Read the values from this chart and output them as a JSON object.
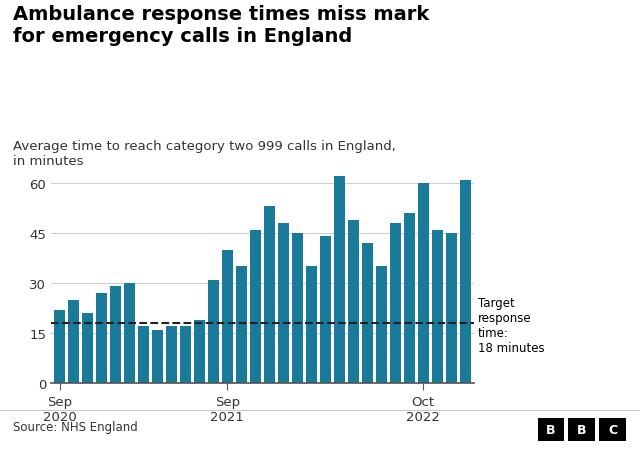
{
  "title_line1": "Ambulance response times miss mark",
  "title_line2": "for emergency calls in England",
  "subtitle": "Average time to reach category two 999 calls in England,\nin minutes",
  "source": "Source: NHS England",
  "bar_color": "#1a7a9a",
  "background_color": "#ffffff",
  "target_line": 18,
  "target_label": "Target\nresponse\ntime:\n18 minutes",
  "yticks": [
    0,
    15,
    30,
    45,
    60
  ],
  "ylim": [
    0,
    65
  ],
  "values": [
    22,
    25,
    21,
    27,
    29,
    30,
    17,
    16,
    17,
    17,
    19,
    31,
    40,
    35,
    46,
    53,
    48,
    45,
    35,
    44,
    62,
    49,
    42,
    35,
    48,
    51,
    60,
    46,
    45,
    61
  ],
  "xtick_positions": [
    0,
    12,
    26
  ],
  "xtick_labels": [
    "Sep\n2020",
    "Sep\n2021",
    "Oct\n2022"
  ],
  "grid_color": "#cccccc",
  "dashed_line_color": "#222222"
}
